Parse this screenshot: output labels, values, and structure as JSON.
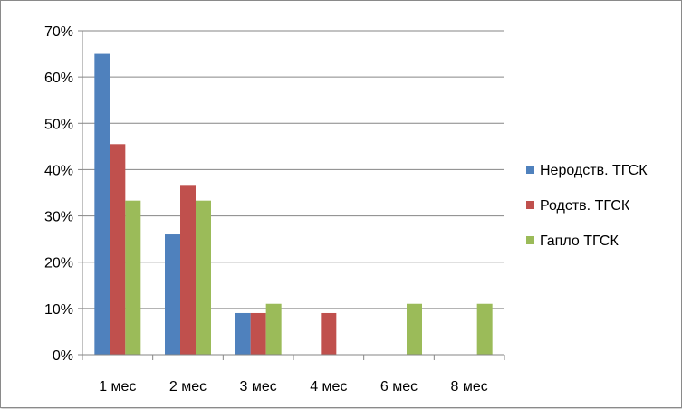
{
  "chart_data": {
    "type": "bar",
    "title": "",
    "xlabel": "",
    "ylabel": "",
    "ylim": [
      0,
      70
    ],
    "y_ticks": [
      "0%",
      "10%",
      "20%",
      "30%",
      "40%",
      "50%",
      "60%",
      "70%"
    ],
    "categories": [
      "1 мес",
      "2 мес",
      "3 мес",
      "4 мес",
      "6 мес",
      "8 мес"
    ],
    "series": [
      {
        "name": "Неродств. ТГСК",
        "color": "#4f81bd",
        "values": [
          65,
          26,
          9,
          0,
          0,
          0
        ]
      },
      {
        "name": "Родств. ТГСК",
        "color": "#c0504d",
        "values": [
          45.5,
          36.5,
          9,
          9,
          0,
          0
        ]
      },
      {
        "name": "Гапло ТГСК",
        "color": "#9bbb59",
        "values": [
          33.3,
          33.3,
          11,
          0,
          11,
          11
        ]
      }
    ],
    "grid": true,
    "legend_position": "right"
  }
}
